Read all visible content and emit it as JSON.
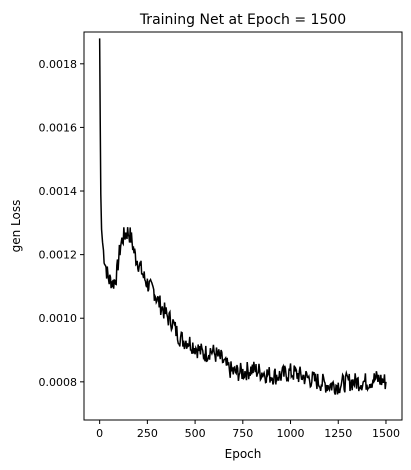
{
  "chart_data": {
    "type": "line",
    "title": "Training Net at Epoch = 1500",
    "xlabel": "Epoch",
    "ylabel": "gen Loss",
    "xlim": [
      -82,
      1584
    ],
    "ylim": [
      0.00068,
      0.0019
    ],
    "grid": false,
    "legend": "none",
    "xticks": [
      0,
      250,
      500,
      750,
      1000,
      1250,
      1500
    ],
    "xtick_labels": [
      "0",
      "250",
      "500",
      "750",
      "1000",
      "1250",
      "1500"
    ],
    "yticks": [
      0.0008,
      0.001,
      0.0012,
      0.0014,
      0.0016,
      0.0018
    ],
    "ytick_labels": [
      "0.0008",
      "0.0010",
      "0.0012",
      "0.0014",
      "0.0016",
      "0.0018"
    ],
    "series": [
      {
        "color": "#000000",
        "x": [
          0,
          3,
          6,
          10,
          15,
          20,
          30,
          40,
          50,
          60,
          70,
          80,
          90,
          100,
          110,
          120,
          130,
          140,
          150,
          160,
          170,
          180,
          190,
          200,
          210,
          220,
          230,
          240,
          250,
          260,
          270,
          280,
          290,
          300,
          320,
          340,
          360,
          380,
          400,
          420,
          440,
          460,
          480,
          500,
          520,
          540,
          560,
          580,
          600,
          620,
          640,
          660,
          680,
          700,
          750,
          800,
          850,
          900,
          950,
          1000,
          1050,
          1100,
          1150,
          1200,
          1250,
          1300,
          1350,
          1400,
          1450,
          1500
        ],
        "y": [
          0.00188,
          0.00162,
          0.00139,
          0.00128,
          0.00124,
          0.00121,
          0.00117,
          0.00114,
          0.00112,
          0.00112,
          0.00111,
          0.00112,
          0.00114,
          0.00119,
          0.00123,
          0.00125,
          0.00126,
          0.00127,
          0.00127,
          0.00126,
          0.00124,
          0.00121,
          0.00119,
          0.00118,
          0.00116,
          0.00115,
          0.00113,
          0.00112,
          0.00111,
          0.0011,
          0.00109,
          0.00109,
          0.00108,
          0.00106,
          0.00104,
          0.00102,
          0.001,
          0.00099,
          0.00096,
          0.00094,
          0.00093,
          0.00093,
          0.00092,
          0.00091,
          0.0009,
          0.00089,
          0.00089,
          0.0009,
          0.00089,
          0.00088,
          0.00087,
          0.00085,
          0.00084,
          0.00083,
          0.00083,
          0.00084,
          0.00083,
          0.00082,
          0.00082,
          0.00083,
          0.00082,
          0.00081,
          0.0008,
          0.00079,
          0.00079,
          0.0008,
          0.0008,
          0.0008,
          0.00081,
          0.0008
        ]
      }
    ]
  }
}
